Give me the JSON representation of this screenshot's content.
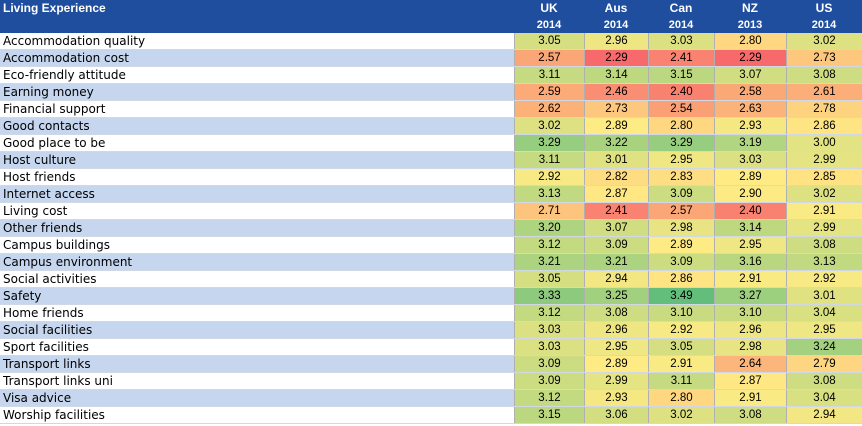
{
  "table": {
    "title": "Living Experience",
    "columns": [
      {
        "country": "UK",
        "year": "2014"
      },
      {
        "country": "Aus",
        "year": "2014"
      },
      {
        "country": "Can",
        "year": "2014"
      },
      {
        "country": "NZ",
        "year": "2013"
      },
      {
        "country": "US",
        "year": "2014"
      }
    ]
  },
  "chart_data": {
    "type": "heatmap",
    "title": "Living Experience",
    "columns": [
      "UK",
      "Aus",
      "Can",
      "NZ",
      "US"
    ],
    "column_years": [
      "2014",
      "2014",
      "2014",
      "2013",
      "2014"
    ],
    "color_scale": {
      "low": "#f8696b",
      "mid": "#ffeb84",
      "high": "#63be7b"
    },
    "rows": [
      {
        "label": "Accommodation quality",
        "values": [
          "3.05",
          "2.96",
          "3.03",
          "2.80",
          "3.02"
        ]
      },
      {
        "label": "Accommodation cost",
        "values": [
          "2.57",
          "2.29",
          "2.41",
          "2.29",
          "2.73"
        ]
      },
      {
        "label": "Eco-friendly attitude",
        "values": [
          "3.11",
          "3.14",
          "3.15",
          "3.07",
          "3.08"
        ]
      },
      {
        "label": "Earning money",
        "values": [
          "2.59",
          "2.46",
          "2.40",
          "2.58",
          "2.61"
        ]
      },
      {
        "label": "Financial support",
        "values": [
          "2.62",
          "2.73",
          "2.54",
          "2.63",
          "2.78"
        ]
      },
      {
        "label": "Good contacts",
        "values": [
          "3.02",
          "2.89",
          "2.80",
          "2.93",
          "2.86"
        ]
      },
      {
        "label": "Good place to be",
        "values": [
          "3.29",
          "3.22",
          "3.29",
          "3.19",
          "3.00"
        ]
      },
      {
        "label": "Host culture",
        "values": [
          "3.11",
          "3.01",
          "2.95",
          "3.03",
          "2.99"
        ]
      },
      {
        "label": "Host friends",
        "values": [
          "2.92",
          "2.82",
          "2.83",
          "2.89",
          "2.85"
        ]
      },
      {
        "label": "Internet access",
        "values": [
          "3.13",
          "2.87",
          "3.09",
          "2.90",
          "3.02"
        ]
      },
      {
        "label": "Living cost",
        "values": [
          "2.71",
          "2.41",
          "2.57",
          "2.40",
          "2.91"
        ]
      },
      {
        "label": "Other friends",
        "values": [
          "3.20",
          "3.07",
          "2.98",
          "3.14",
          "2.99"
        ]
      },
      {
        "label": "Campus buildings",
        "values": [
          "3.12",
          "3.09",
          "2.89",
          "2.95",
          "3.08"
        ]
      },
      {
        "label": "Campus environment",
        "values": [
          "3.21",
          "3.21",
          "3.09",
          "3.16",
          "3.13"
        ]
      },
      {
        "label": "Social activities",
        "values": [
          "3.05",
          "2.94",
          "2.86",
          "2.91",
          "2.92"
        ]
      },
      {
        "label": "Safety",
        "values": [
          "3.33",
          "3.25",
          "3.49",
          "3.27",
          "3.01"
        ]
      },
      {
        "label": "Home friends",
        "values": [
          "3.12",
          "3.08",
          "3.10",
          "3.10",
          "3.04"
        ]
      },
      {
        "label": "Social facilities",
        "values": [
          "3.03",
          "2.96",
          "2.92",
          "2.96",
          "2.95"
        ]
      },
      {
        "label": "Sport facilities",
        "values": [
          "3.03",
          "2.95",
          "3.05",
          "2.98",
          "3.24"
        ]
      },
      {
        "label": "Transport links",
        "values": [
          "3.09",
          "2.89",
          "2.91",
          "2.64",
          "2.79"
        ]
      },
      {
        "label": "Transport links uni",
        "values": [
          "3.09",
          "2.99",
          "3.11",
          "2.87",
          "3.08"
        ]
      },
      {
        "label": "Visa advice",
        "values": [
          "3.12",
          "2.93",
          "2.80",
          "2.91",
          "3.04"
        ]
      },
      {
        "label": "Worship facilities",
        "values": [
          "3.15",
          "3.06",
          "3.02",
          "3.08",
          "2.94"
        ]
      }
    ]
  }
}
